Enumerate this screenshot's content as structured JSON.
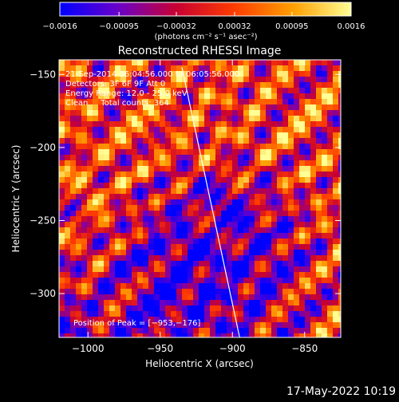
{
  "chart_data": {
    "type": "heatmap",
    "title": "Reconstructed RHESSI Image",
    "xlabel": "Heliocentric X (arcsec)",
    "ylabel": "Heliocentric Y (arcsec)",
    "xlim": [
      -1020,
      -825
    ],
    "ylim": [
      -330,
      -140
    ],
    "x_ticks": [
      -1000,
      -950,
      -900,
      -850
    ],
    "y_ticks": [
      -300,
      -250,
      -200,
      -150
    ],
    "x_tick_labels": [
      "−1000",
      "−950",
      "−900",
      "−850"
    ],
    "y_tick_labels": [
      "−300",
      "−250",
      "−200",
      "−150"
    ],
    "colorbar": {
      "min": -0.0016,
      "max": 0.0016,
      "ticks": [
        -0.0016,
        -0.00095,
        -0.00032,
        0.00032,
        0.00095,
        0.0016
      ],
      "tick_labels": [
        "−0.0016",
        "−0.00095",
        "−0.00032",
        "0.00032",
        "0.00095",
        "0.0016"
      ],
      "units_label": "(photons cm⁻² s⁻¹ asec⁻²)",
      "colors": [
        "#0000ff",
        "#6a00c8",
        "#c80032",
        "#ff3c00",
        "#ffa000",
        "#ffff96"
      ]
    },
    "annotations": {
      "line1": "21-Sep-2014 06:04:56.000 to 06:05:56.000",
      "line2": "Detectors: 3F 6F 9F  Att 0",
      "line3": "Energy Range: 12.0 - 25.0 keV",
      "line4": "Clean     Total counts: 364",
      "peak": "Position of Peak = [−953,−176]"
    },
    "peak_position": [
      -953,
      -176
    ],
    "limb_line": [
      [
        -935,
        -145
      ],
      [
        -895,
        -330
      ]
    ],
    "grid": false
  },
  "footer": {
    "date": "17-May-2022 10:19"
  }
}
